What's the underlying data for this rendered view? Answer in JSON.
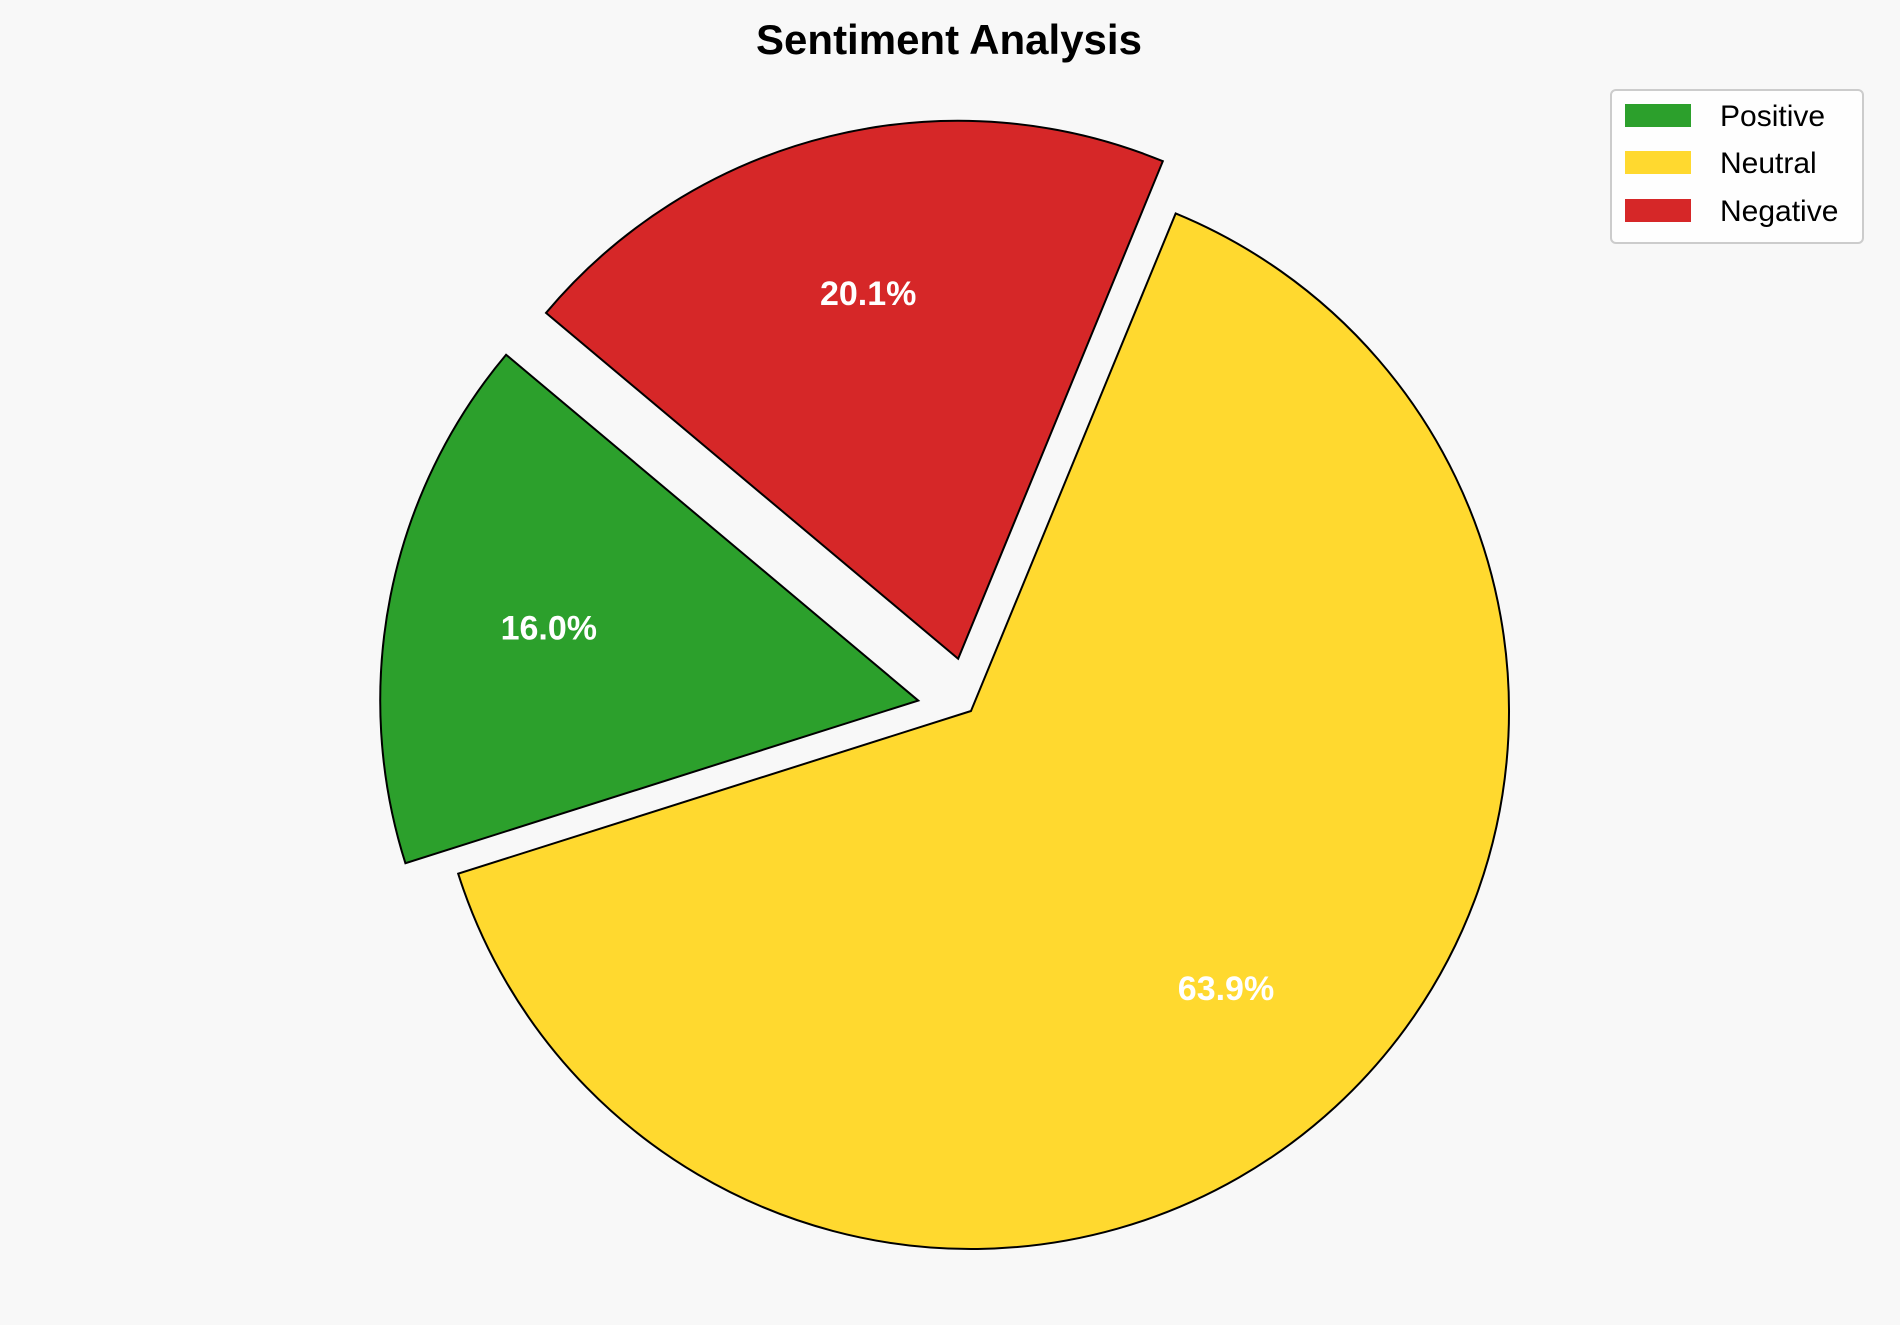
{
  "chart_data": {
    "type": "pie",
    "title": "Sentiment Analysis",
    "categories": [
      "Positive",
      "Neutral",
      "Negative"
    ],
    "values": [
      16.0,
      63.9,
      20.1
    ],
    "labels": [
      "16.0%",
      "63.9%",
      "20.1%"
    ],
    "colors": [
      "#2ca02c",
      "#ffd92f",
      "#d62728"
    ],
    "explode": [
      0.1,
      0,
      0.1
    ],
    "startangle": 140,
    "direction": "counterclockwise",
    "legend": {
      "placement": "top-right",
      "entries": [
        "Positive",
        "Neutral",
        "Negative"
      ]
    },
    "background": "#f8f8f8",
    "edge_color": "#000000",
    "label_color": "#ffffff"
  }
}
